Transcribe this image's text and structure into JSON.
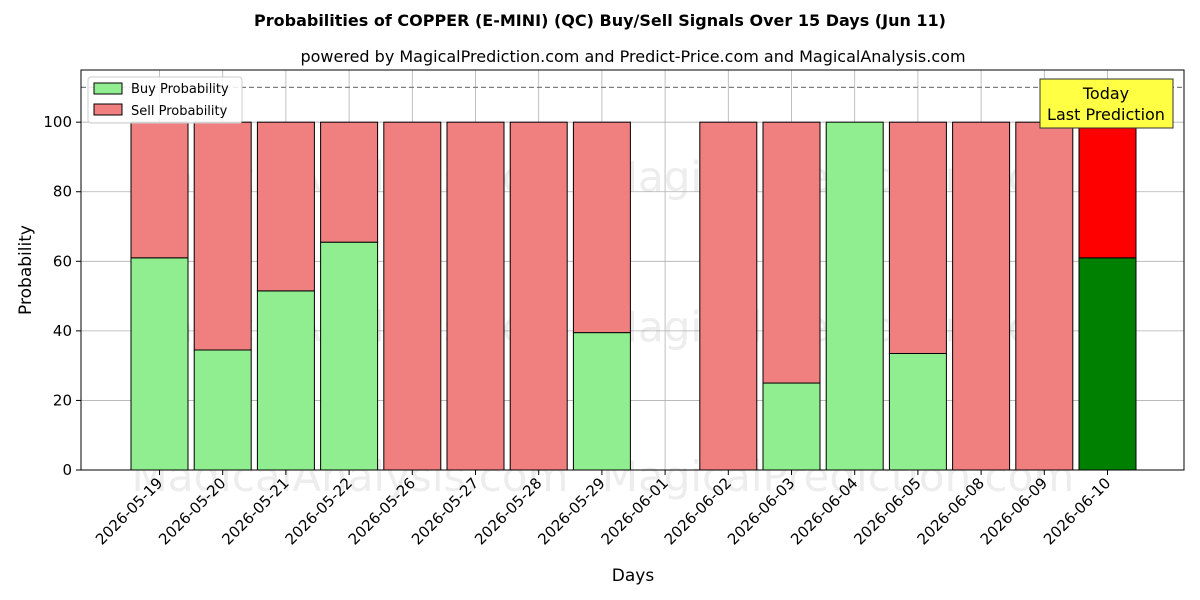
{
  "chart_data": {
    "type": "bar",
    "stacked": true,
    "title": "Probabilities of COPPER (E-MINI) (QC) Buy/Sell Signals Over 15 Days (Jun 11)",
    "subtitle": "powered by MagicalPrediction.com and Predict-Price.com and MagicalAnalysis.com",
    "xlabel": "Days",
    "ylabel": "Probability",
    "ylim": [
      0,
      115
    ],
    "yticks": [
      0,
      20,
      40,
      60,
      80,
      100
    ],
    "threshold_line": 110,
    "grid": true,
    "legend_position": "top-left",
    "categories": [
      "2026-05-19",
      "2026-05-20",
      "2026-05-21",
      "2026-05-22",
      "2026-05-26",
      "2026-05-27",
      "2026-05-28",
      "2026-05-29",
      "2026-06-01",
      "2026-06-02",
      "2026-06-03",
      "2026-06-04",
      "2026-06-05",
      "2026-06-08",
      "2026-06-09",
      "2026-06-10"
    ],
    "series": [
      {
        "name": "Buy Probability",
        "color": "#90ee90",
        "values": [
          61,
          34.5,
          51.5,
          65.5,
          0,
          0,
          0,
          39.5,
          null,
          0,
          25,
          100,
          33.5,
          0,
          0,
          61
        ]
      },
      {
        "name": "Sell Probability",
        "color": "#f08080",
        "values": [
          39,
          65.5,
          48.5,
          34.5,
          100,
          100,
          100,
          60.5,
          null,
          100,
          75,
          0,
          66.5,
          100,
          100,
          39
        ]
      }
    ],
    "highlight": {
      "index": 15,
      "buy_color": "#008000",
      "sell_color": "#ff0000"
    },
    "annotation": {
      "lines": [
        "Today",
        "Last Prediction"
      ],
      "background": "#ffff44"
    },
    "watermarks": [
      "MagicalAnalysis.com",
      "MagicalPrediction.com"
    ]
  }
}
